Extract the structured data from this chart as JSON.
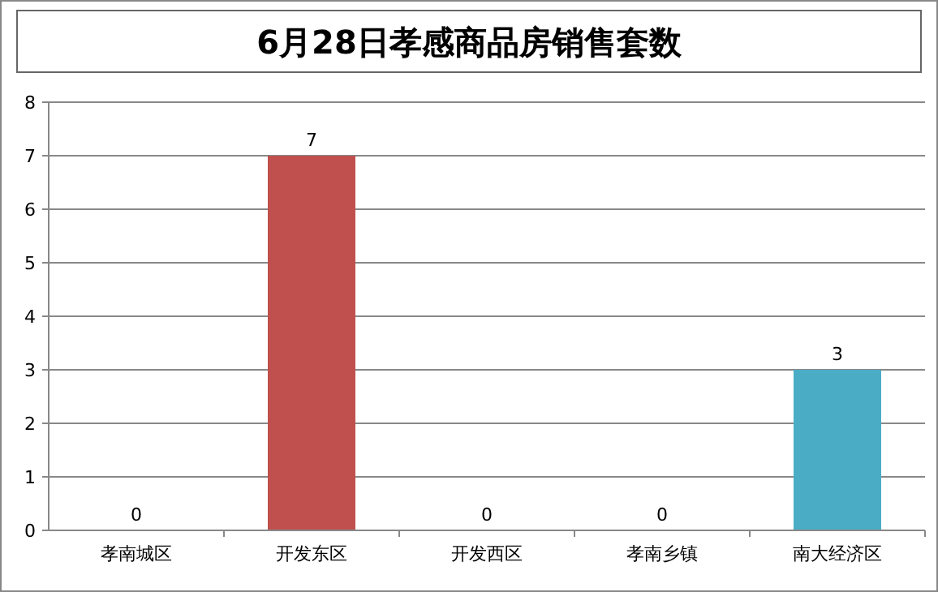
{
  "chart_data": {
    "type": "bar",
    "title": "6月28日孝感商品房销售套数",
    "categories": [
      "孝南城区",
      "开发东区",
      "开发西区",
      "孝南乡镇",
      "南大经济区"
    ],
    "values": [
      0,
      7,
      0,
      0,
      3
    ],
    "colors": [
      "#4f81bd",
      "#c0504d",
      "#9bbb59",
      "#8064a2",
      "#4bacc6"
    ],
    "ylim": [
      0,
      8
    ],
    "yticks": [
      0,
      1,
      2,
      3,
      4,
      5,
      6,
      7,
      8
    ],
    "grid": "y",
    "data_labels": true
  }
}
